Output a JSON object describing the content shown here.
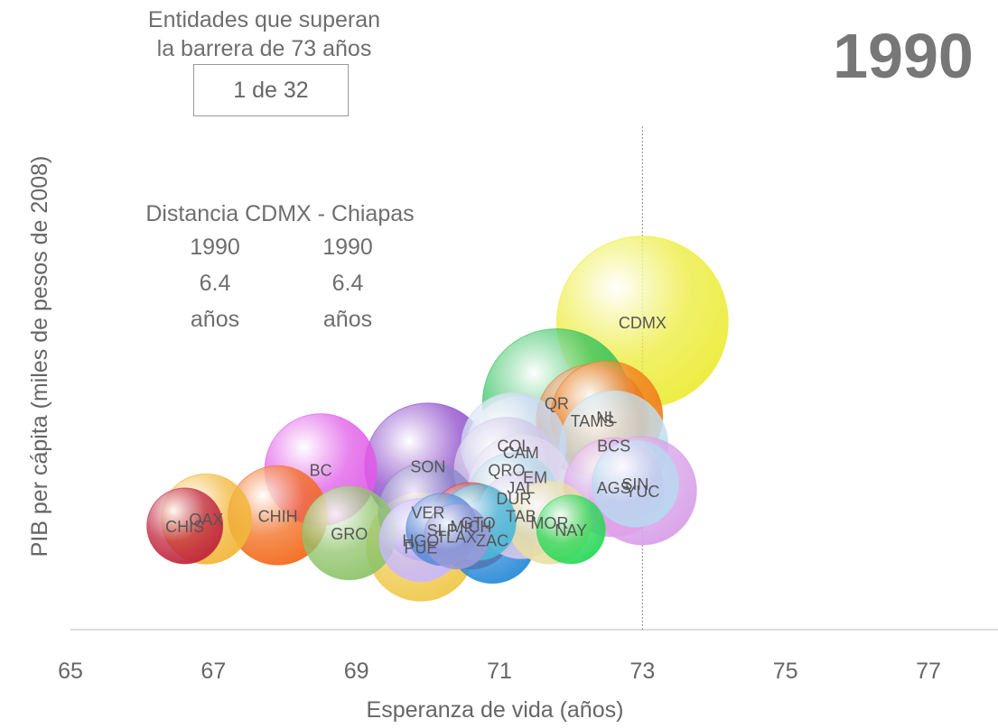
{
  "header": {
    "counter_title_line1": "Entidades que superan",
    "counter_title_line2": "la barrera de 73 años",
    "counter_value": "1 de 32",
    "year": "1990"
  },
  "distance_panel": {
    "title": "Distancia CDMX - Chiapas",
    "col_a": {
      "year": "1990",
      "value": "6.4",
      "unit": "años"
    },
    "col_b": {
      "year": "1990",
      "value": "6.4",
      "unit": "años"
    }
  },
  "chart_data": {
    "type": "scatter",
    "subtype": "bubble",
    "xlabel": "Esperanza de vida (años)",
    "ylabel": "PIB per cápita (miles de pesos de 2008)",
    "xlim": [
      65,
      78
    ],
    "xticks": [
      65,
      67,
      69,
      71,
      73,
      75,
      77
    ],
    "threshold_line": 73,
    "grid": false,
    "points": [
      {
        "label": "CHIS",
        "x": 66.6,
        "y": 30,
        "r": 42,
        "color": "#c0243c"
      },
      {
        "label": "OAX",
        "x": 66.9,
        "y": 32,
        "r": 50,
        "color": "#f2b73a"
      },
      {
        "label": "CHIH",
        "x": 67.9,
        "y": 33,
        "r": 55,
        "color": "#f26a1b"
      },
      {
        "label": "BC",
        "x": 68.5,
        "y": 46,
        "r": 62,
        "color": "#e05ae8"
      },
      {
        "label": "GRO",
        "x": 68.9,
        "y": 28,
        "r": 52,
        "color": "#8fc46a"
      },
      {
        "label": "SON",
        "x": 70.0,
        "y": 47,
        "r": 70,
        "color": "#8a45c8"
      },
      {
        "label": "PUE",
        "x": 69.9,
        "y": 24,
        "r": 60,
        "color": "#f0c84a"
      },
      {
        "label": "HGO",
        "x": 69.9,
        "y": 26,
        "r": 46,
        "color": "#c9b8ff"
      },
      {
        "label": "VER",
        "x": 70.0,
        "y": 34,
        "r": 55,
        "color": "#8a8ac8"
      },
      {
        "label": "SLP",
        "x": 70.2,
        "y": 29,
        "r": 40,
        "color": "#5a8ad8"
      },
      {
        "label": "MICH",
        "x": 70.6,
        "y": 30,
        "r": 48,
        "color": "#e03a3a"
      },
      {
        "label": "TLAX",
        "x": 70.4,
        "y": 27,
        "r": 36,
        "color": "#9a9ad8"
      },
      {
        "label": "GTO",
        "x": 70.7,
        "y": 31,
        "r": 42,
        "color": "#4ab8d8"
      },
      {
        "label": "ZAC",
        "x": 70.9,
        "y": 26,
        "r": 48,
        "color": "#2a8ad8"
      },
      {
        "label": "COL",
        "x": 71.2,
        "y": 53,
        "r": 58,
        "color": "#c8d8f0"
      },
      {
        "label": "CAM",
        "x": 71.3,
        "y": 51,
        "r": 62,
        "color": "#e0e8f0"
      },
      {
        "label": "QRO",
        "x": 71.1,
        "y": 46,
        "r": 58,
        "color": "#d0c8e8"
      },
      {
        "label": "EM",
        "x": 71.5,
        "y": 44,
        "r": 62,
        "color": "#c8e8d8"
      },
      {
        "label": "JAL",
        "x": 71.3,
        "y": 41,
        "r": 58,
        "color": "#e0d8f0"
      },
      {
        "label": "DUR",
        "x": 71.2,
        "y": 38,
        "r": 50,
        "color": "#b8d8e8"
      },
      {
        "label": "TAB",
        "x": 71.3,
        "y": 33,
        "r": 48,
        "color": "#d8c8e8"
      },
      {
        "label": "MOR",
        "x": 71.7,
        "y": 31,
        "r": 46,
        "color": "#e8e0a0"
      },
      {
        "label": "NAY",
        "x": 72.0,
        "y": 29,
        "r": 38,
        "color": "#2ad85a"
      },
      {
        "label": "QR",
        "x": 71.8,
        "y": 65,
        "r": 82,
        "color": "#2ec05a"
      },
      {
        "label": "TAMS",
        "x": 72.3,
        "y": 60,
        "r": 62,
        "color": "#e07a3a"
      },
      {
        "label": "NL",
        "x": 72.5,
        "y": 61,
        "r": 62,
        "color": "#f07a1a"
      },
      {
        "label": "BCS",
        "x": 72.6,
        "y": 53,
        "r": 60,
        "color": "#c0e0f0"
      },
      {
        "label": "AGS",
        "x": 72.6,
        "y": 41,
        "r": 55,
        "color": "#e0a0e8"
      },
      {
        "label": "SIN",
        "x": 72.9,
        "y": 42,
        "r": 48,
        "color": "#b8d8f0"
      },
      {
        "label": "YUC",
        "x": 73.0,
        "y": 40,
        "r": 60,
        "color": "#d8a0e8"
      },
      {
        "label": "CDMX",
        "x": 73.0,
        "y": 88,
        "r": 95,
        "color": "#ecec3a"
      }
    ]
  }
}
